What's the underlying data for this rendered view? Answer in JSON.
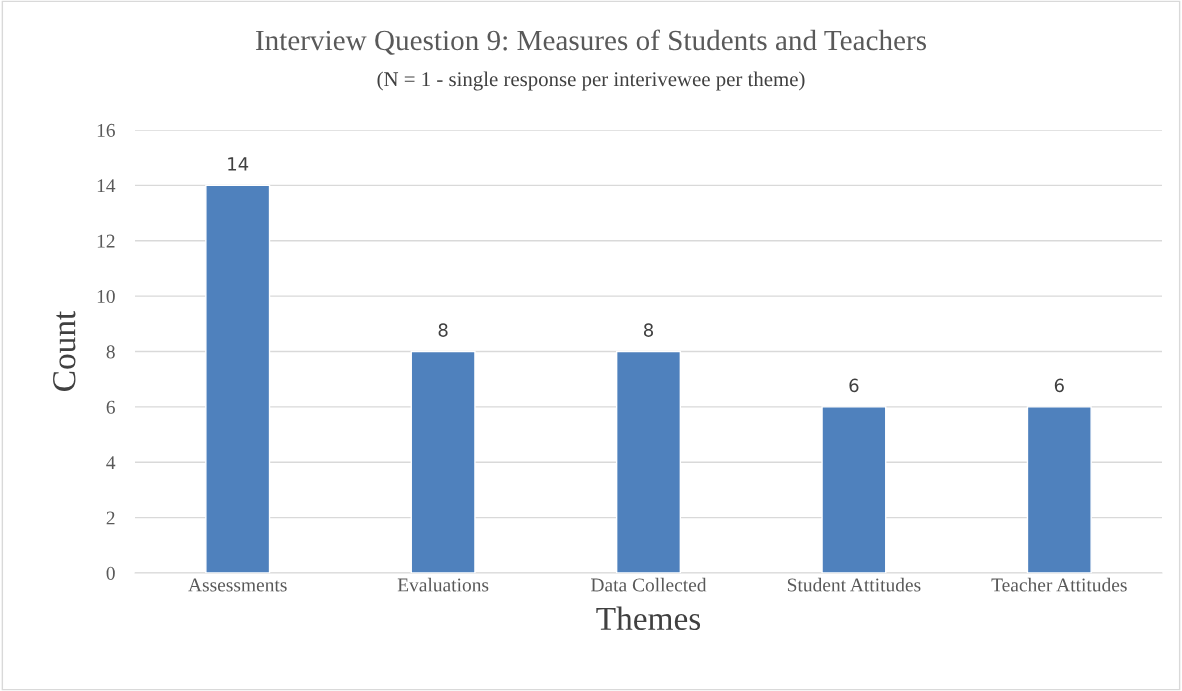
{
  "chart_data": {
    "type": "bar",
    "title": "Interview Question 9: Measures of Students and Teachers",
    "subtitle": "(N = 1 - single response per interivewee per theme)",
    "xlabel": "Themes",
    "ylabel": "Count",
    "categories": [
      "Assessments",
      "Evaluations",
      "Data Collected",
      "Student Attitudes",
      "Teacher Attitudes"
    ],
    "values": [
      14,
      8,
      8,
      6,
      6
    ],
    "color": "#4f81bd",
    "ylim": [
      0,
      16
    ],
    "yticks": [
      0,
      2,
      4,
      6,
      8,
      10,
      12,
      14,
      16
    ],
    "grid": "y",
    "data_labels": true,
    "legend": false
  }
}
